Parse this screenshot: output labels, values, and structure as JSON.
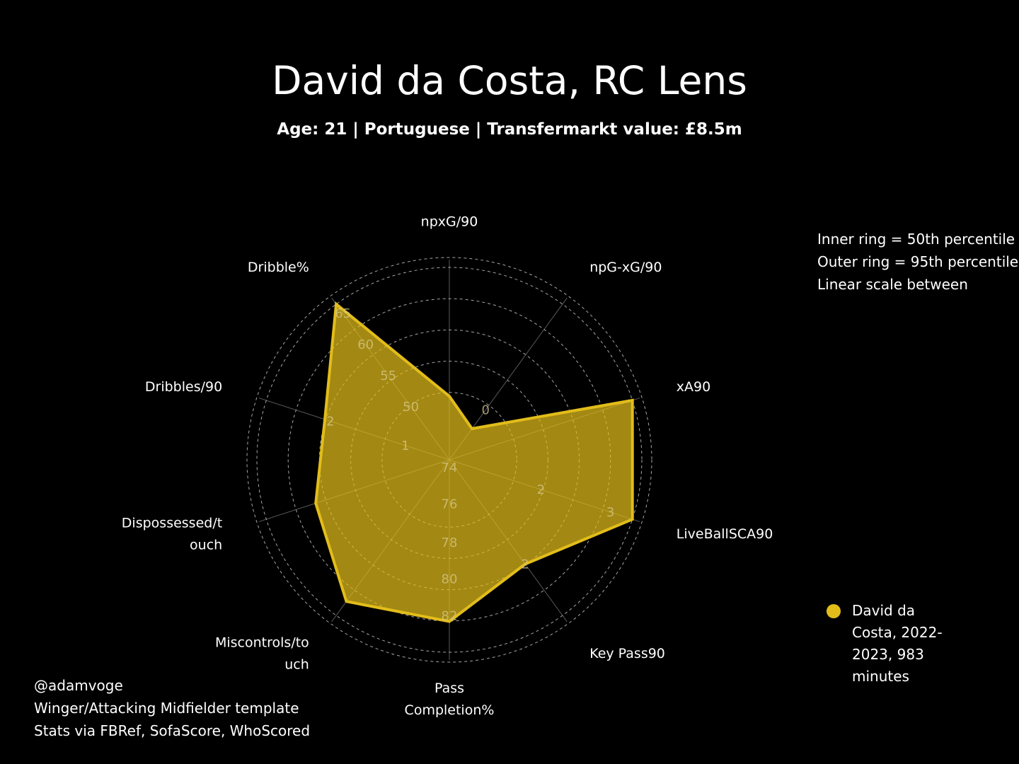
{
  "title": "David da Costa, RC Lens",
  "subtitle": "Age: 21 | Portuguese | Transfermarkt value: £8.5m",
  "notes": [
    "Inner ring = 50th percentile",
    "Outer ring = 95th percentile",
    "Linear scale between"
  ],
  "footer": [
    "@adamvoge",
    "Winger/Attacking Midfielder template",
    "Stats via FBRef, SofaScore, WhoScored"
  ],
  "legend": {
    "label": "David da Costa, 2022-2023, 983 minutes",
    "color": "#e2bd1a"
  },
  "chart_data": {
    "type": "radar",
    "axes": [
      {
        "label": [
          "npxG/90"
        ]
      },
      {
        "label": [
          "npG-xG/90"
        ]
      },
      {
        "label": [
          "xA90"
        ]
      },
      {
        "label": [
          "LiveBallSCA90"
        ]
      },
      {
        "label": [
          "Key Pass90"
        ]
      },
      {
        "label": [
          "Pass",
          "Completion%"
        ]
      },
      {
        "label": [
          "Miscontrols/to",
          "uch"
        ]
      },
      {
        "label": [
          "Dispossessed/t",
          "ouch"
        ]
      },
      {
        "label": [
          "Dribbles/90"
        ]
      },
      {
        "label": [
          "Dribble%"
        ]
      }
    ],
    "tick_labels": [
      {
        "text": "0",
        "axis": 1,
        "level": 0.32
      },
      {
        "text": "2",
        "axis": 3,
        "level": 0.5
      },
      {
        "text": "3",
        "axis": 3,
        "level": 0.88
      },
      {
        "text": "2",
        "axis": 4,
        "level": 0.67
      },
      {
        "text": "74",
        "axis": 5,
        "level": 0.04
      },
      {
        "text": "76",
        "axis": 5,
        "level": 0.23
      },
      {
        "text": "78",
        "axis": 5,
        "level": 0.43
      },
      {
        "text": "80",
        "axis": 5,
        "level": 0.62
      },
      {
        "text": "82",
        "axis": 5,
        "level": 0.81
      },
      {
        "text": "1",
        "axis": 8,
        "level": 0.24
      },
      {
        "text": "2",
        "axis": 8,
        "level": 0.65
      },
      {
        "text": "50",
        "axis": 9,
        "level": 0.34
      },
      {
        "text": "55",
        "axis": 9,
        "level": 0.54
      },
      {
        "text": "60",
        "axis": 9,
        "level": 0.74
      },
      {
        "text": "65",
        "axis": 9,
        "level": 0.94
      }
    ],
    "series": [
      {
        "name": "David da Costa, 2022-2023, 983 minutes",
        "color": "#e2bd1a",
        "values": [
          0.33,
          0.2,
          1.0,
          1.0,
          0.67,
          0.84,
          0.91,
          0.73,
          0.68,
          1.0
        ]
      }
    ],
    "scale": {
      "min": 0,
      "max": 1,
      "inner_ring": 0.35,
      "outer_ring": 1.0,
      "rings": 5,
      "outer_dashed_ring": 1.1
    },
    "grid": true
  }
}
